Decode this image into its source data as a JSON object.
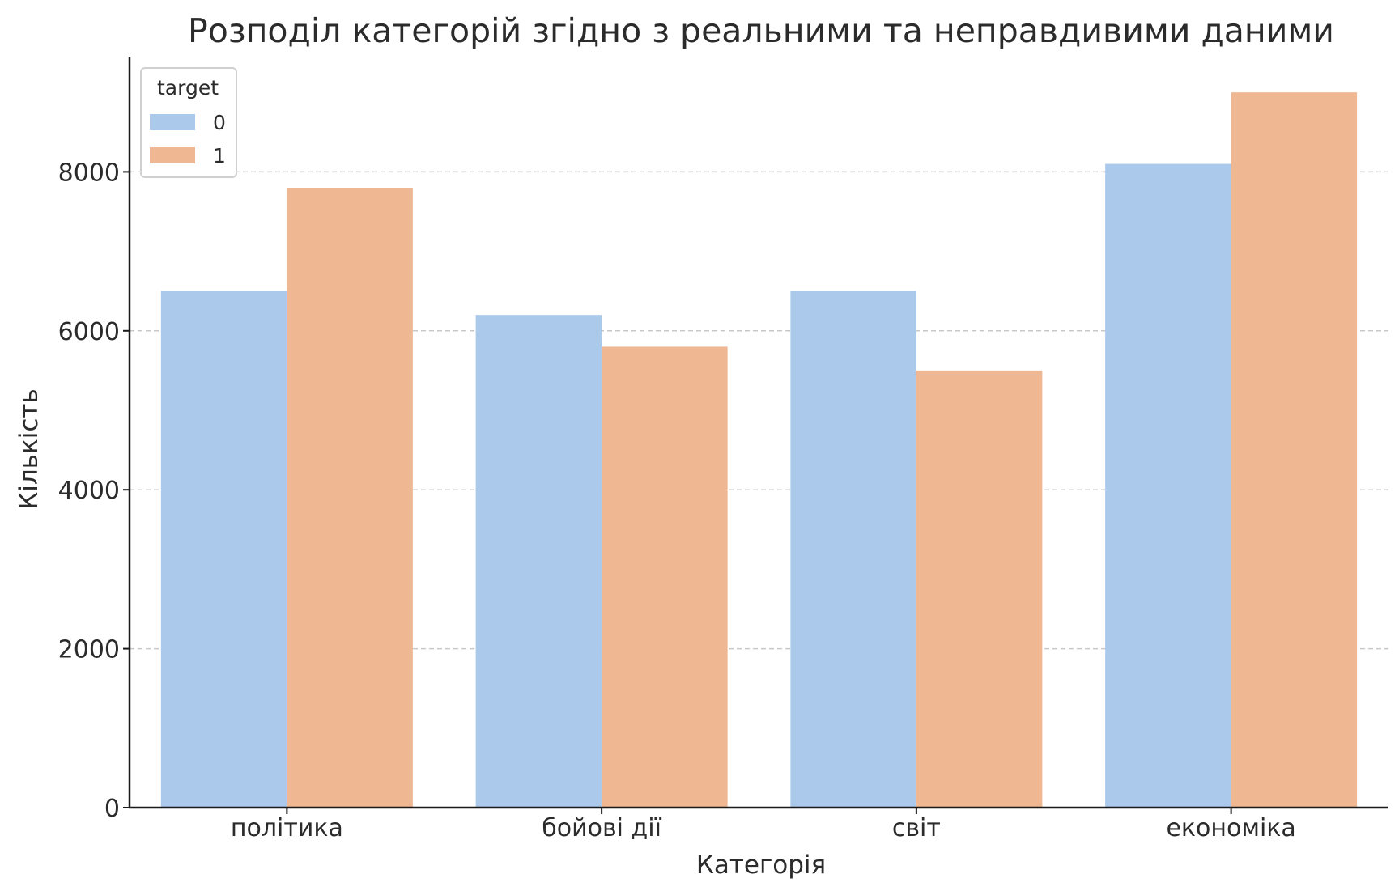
{
  "chart_data": {
    "type": "bar",
    "title": "Розподіл категорій згідно з реальними та неправдивими даними",
    "xlabel": "Категорія",
    "ylabel": "Кількість",
    "categories": [
      "політика",
      "бойові дії",
      "світ",
      "економіка"
    ],
    "series": [
      {
        "name": "0",
        "values": [
          6500,
          6200,
          6500,
          8100
        ],
        "color": "#abc9eb"
      },
      {
        "name": "1",
        "values": [
          7800,
          5800,
          5500,
          9000
        ],
        "color": "#efb792"
      }
    ],
    "ylim": [
      0,
      9450
    ],
    "yticks": [
      0,
      2000,
      4000,
      6000,
      8000
    ],
    "grid": true,
    "legend": {
      "title": "target",
      "position": "top-left"
    }
  }
}
